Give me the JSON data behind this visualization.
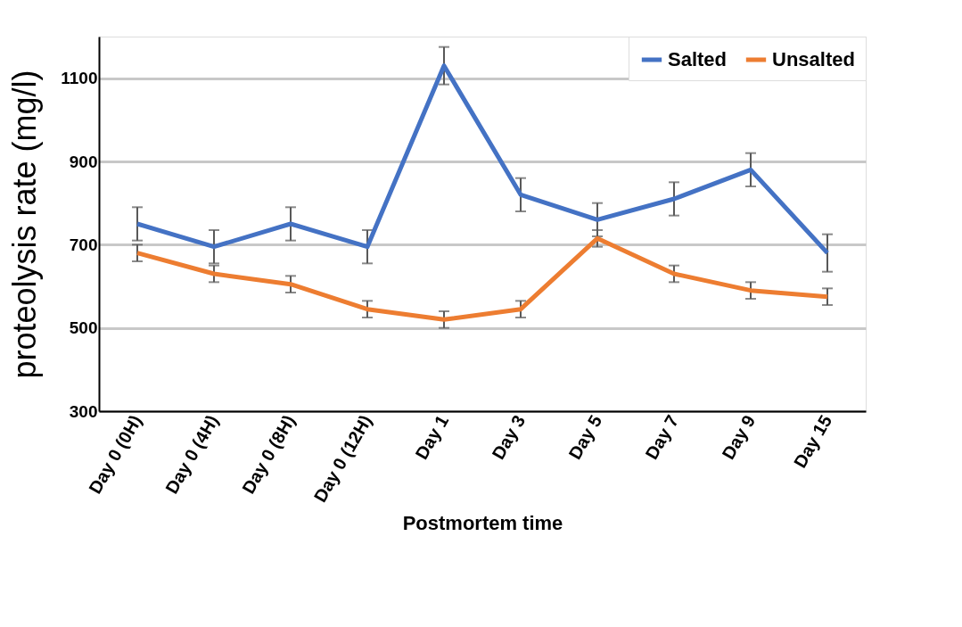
{
  "chart_data": {
    "type": "line",
    "xlabel": "Postmortem time",
    "ylabel": "proteolysis rate (mg/l)",
    "categories": [
      "Day 0 (0H)",
      "Day 0 (4H)",
      "Day 0 (8H)",
      "Day 0 (12H)",
      "Day 1",
      "Day 3",
      "Day 5",
      "Day 7",
      "Day 9",
      "Day 15"
    ],
    "series": [
      {
        "name": "Salted",
        "color": "#4472c4",
        "values": [
          750,
          695,
          750,
          695,
          1130,
          820,
          760,
          810,
          880,
          680
        ],
        "errors": [
          40,
          40,
          40,
          40,
          45,
          40,
          40,
          40,
          40,
          45
        ]
      },
      {
        "name": "Unsalted",
        "color": "#ed7d31",
        "values": [
          680,
          630,
          605,
          545,
          520,
          545,
          715,
          630,
          590,
          575
        ],
        "errors": [
          20,
          20,
          20,
          20,
          20,
          20,
          20,
          20,
          20,
          20
        ]
      }
    ],
    "ylim": [
      300,
      1200
    ],
    "yticks": [
      300,
      500,
      700,
      900,
      1100
    ],
    "grid": "y",
    "legend": "top right",
    "marker": "none",
    "line_style": "solid"
  }
}
